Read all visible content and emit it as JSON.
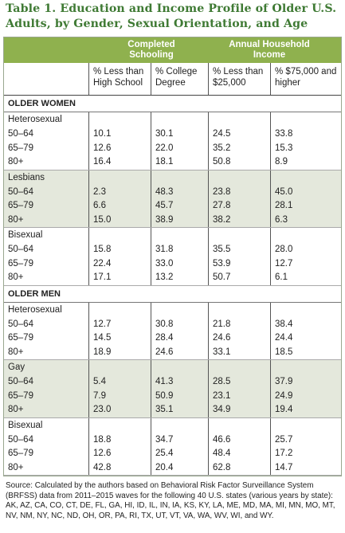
{
  "title": "Table 1. Education and Income Profile of Older U.S. Adults, by Gender, Sexual Orientation, and Age",
  "header": {
    "group1": "Completed Schooling",
    "group2": "Annual Household Income",
    "columns": [
      "% Less than High School",
      "% College Degree",
      "% Less than $25,000",
      "% $75,000 and higher"
    ]
  },
  "sections": [
    {
      "label": "OLDER WOMEN",
      "groups": [
        {
          "label": "Heterosexual",
          "shaded": false,
          "rows": [
            {
              "age": "50–64",
              "values": [
                "10.1",
                "30.1",
                "24.5",
                "33.8"
              ]
            },
            {
              "age": "65–79",
              "values": [
                "12.6",
                "22.0",
                "35.2",
                "15.3"
              ]
            },
            {
              "age": "80+",
              "values": [
                "16.4",
                "18.1",
                "50.8",
                "8.9"
              ]
            }
          ]
        },
        {
          "label": "Lesbians",
          "shaded": true,
          "rows": [
            {
              "age": "50–64",
              "values": [
                "2.3",
                "48.3",
                "23.8",
                "45.0"
              ]
            },
            {
              "age": "65–79",
              "values": [
                "6.6",
                "45.7",
                "27.8",
                "28.1"
              ]
            },
            {
              "age": "80+",
              "values": [
                "15.0",
                "38.9",
                "38.2",
                "6.3"
              ]
            }
          ]
        },
        {
          "label": "Bisexual",
          "shaded": false,
          "rows": [
            {
              "age": "50–64",
              "values": [
                "15.8",
                "31.8",
                "35.5",
                "28.0"
              ]
            },
            {
              "age": "65–79",
              "values": [
                "22.4",
                "33.0",
                "53.9",
                "12.7"
              ]
            },
            {
              "age": "80+",
              "values": [
                "17.1",
                "13.2",
                "50.7",
                "6.1"
              ]
            }
          ]
        }
      ]
    },
    {
      "label": "OLDER MEN",
      "groups": [
        {
          "label": "Heterosexual",
          "shaded": false,
          "rows": [
            {
              "age": "50–64",
              "values": [
                "12.7",
                "30.8",
                "21.8",
                "38.4"
              ]
            },
            {
              "age": "65–79",
              "values": [
                "14.5",
                "28.4",
                "24.6",
                "24.4"
              ]
            },
            {
              "age": "80+",
              "values": [
                "18.9",
                "24.6",
                "33.1",
                "18.5"
              ]
            }
          ]
        },
        {
          "label": "Gay",
          "shaded": true,
          "rows": [
            {
              "age": "50–64",
              "values": [
                "5.4",
                "41.3",
                "28.5",
                "37.9"
              ]
            },
            {
              "age": "65–79",
              "values": [
                "7.9",
                "50.9",
                "23.1",
                "24.9"
              ]
            },
            {
              "age": "80+",
              "values": [
                "23.0",
                "35.1",
                "34.9",
                "19.4"
              ]
            }
          ]
        },
        {
          "label": "Bisexual",
          "shaded": false,
          "rows": [
            {
              "age": "50–64",
              "values": [
                "18.8",
                "34.7",
                "46.6",
                "25.7"
              ]
            },
            {
              "age": "65–79",
              "values": [
                "12.6",
                "25.4",
                "48.4",
                "17.2"
              ]
            },
            {
              "age": "80+",
              "values": [
                "42.8",
                "20.4",
                "62.8",
                "14.7"
              ]
            }
          ]
        }
      ]
    }
  ],
  "source": "Source: Calculated by the authors based on Behavioral Risk Factor Surveillance System (BRFSS) data from 2011–2015 waves for the following 40 U.S. states (various years by state): AK, AZ, CA, CO, CT, DE, FL, GA, HI, ID, IL, IN, IA, KS, KY, LA, ME, MD, MA, MI, MN, MO, MT, NV, NM, NY, NC, ND, OH, OR, PA, RI, TX, UT, VT, VA, WA, WV, WI, and WY."
}
